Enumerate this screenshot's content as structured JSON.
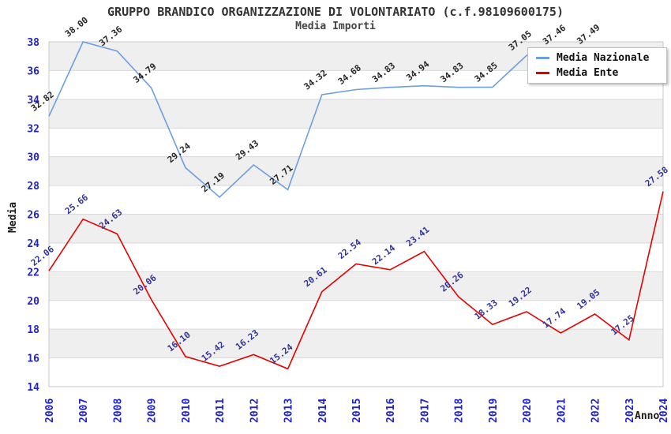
{
  "header": {
    "title": "GRUPPO BRANDICO ORGANIZZAZIONE DI VOLONTARIATO (c.f.98109600175)",
    "subtitle": "Media Importi"
  },
  "legend": {
    "items": [
      {
        "label": "Media Nazionale",
        "color": "#6d9ee0"
      },
      {
        "label": "Media Ente",
        "color": "#e60000"
      }
    ]
  },
  "colors": {
    "band_gray": "#efefef",
    "gridline": "#d9d9d9",
    "plot_border": "#c9c9c9",
    "tick_label_blue": "#2222cc",
    "axis_title_black": "#1a1a1a",
    "nazionale_line": "#6d9ee0",
    "nazionale_label": "#262626",
    "ente_line": "#e60000",
    "ente_label": "#333399"
  },
  "chart_data": {
    "type": "line",
    "title": "GRUPPO BRANDICO ORGANIZZAZIONE DI VOLONTARIATO (c.f.98109600175)",
    "subtitle": "Media Importi",
    "xlabel": "Anno",
    "ylabel": "Media",
    "ylim": [
      14,
      38
    ],
    "y_ticks": [
      14,
      16,
      18,
      20,
      22,
      24,
      26,
      28,
      30,
      32,
      34,
      36,
      38
    ],
    "grid": "alternating horizontal gray/white bands every 2 units",
    "legend_position": "top-right inside plot",
    "x": [
      2006,
      2007,
      2008,
      2009,
      2010,
      2011,
      2012,
      2013,
      2014,
      2015,
      2016,
      2017,
      2018,
      2019,
      2020,
      2021,
      2022,
      2023,
      2024
    ],
    "series": [
      {
        "name": "Media Nazionale",
        "color": "#6d9ee0",
        "label_color": "#262626",
        "values": [
          32.82,
          38.0,
          37.36,
          34.79,
          29.24,
          27.19,
          29.43,
          27.71,
          34.32,
          34.68,
          34.83,
          34.94,
          34.83,
          34.85,
          37.05,
          37.46,
          37.49,
          null,
          null
        ]
      },
      {
        "name": "Media Ente",
        "color": "#e60000",
        "label_color": "#333399",
        "values": [
          22.06,
          25.66,
          24.63,
          20.06,
          16.1,
          15.42,
          16.23,
          15.24,
          20.61,
          22.54,
          22.14,
          23.41,
          20.26,
          18.33,
          19.22,
          17.74,
          19.05,
          17.25,
          27.58
        ]
      }
    ],
    "note": "Media Nazionale 2023-2024 points and labels are hidden behind the legend box; 2021 label only partially visible"
  }
}
